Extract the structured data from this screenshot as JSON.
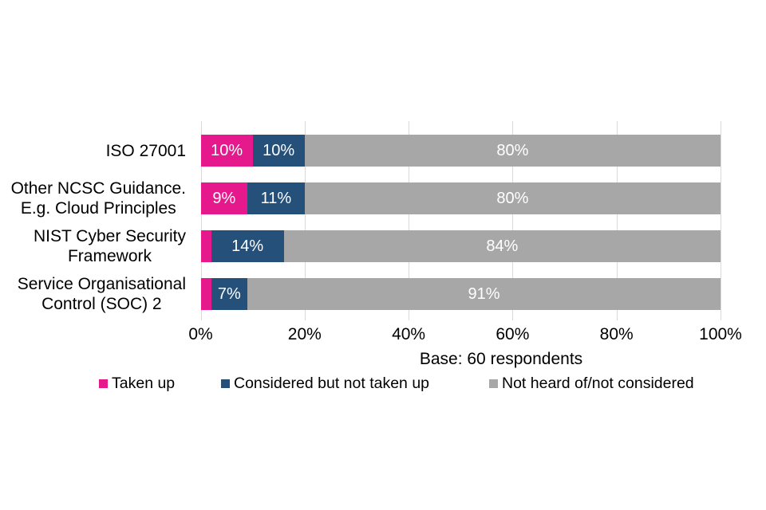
{
  "chart_data": {
    "type": "bar",
    "orientation": "horizontal",
    "stacked": true,
    "title": "",
    "xlabel": "",
    "ylabel": "",
    "axis_note": "Base: 60 respondents",
    "grid": true,
    "legend_position": "bottom",
    "categories": [
      "ISO 27001",
      "Other NCSC Guidance. E.g. Cloud Principles",
      "NIST Cyber Security Framework",
      "Service Organisational Control (SOC) 2"
    ],
    "category_lines": [
      [
        "ISO 27001"
      ],
      [
        "Other NCSC Guidance.",
        "E.g. Cloud Principles"
      ],
      [
        "NIST Cyber Security",
        "Framework"
      ],
      [
        "Service Organisational",
        "Control (SOC) 2"
      ]
    ],
    "series": [
      {
        "name": "Taken up",
        "color": "#E6198C",
        "values": [
          10,
          9,
          2,
          2
        ],
        "labels": [
          "10%",
          "9%",
          "",
          ""
        ]
      },
      {
        "name": "Considered but not taken up",
        "color": "#24507A",
        "values": [
          10,
          11,
          14,
          7
        ],
        "labels": [
          "10%",
          "11%",
          "14%",
          "7%"
        ]
      },
      {
        "name": "Not heard of/not considered",
        "color": "#A7A7A7",
        "values": [
          80,
          80,
          84,
          91
        ],
        "labels": [
          "80%",
          "80%",
          "84%",
          "91%"
        ]
      }
    ],
    "x_axis": {
      "range": [
        0,
        100
      ],
      "tick_values": [
        0,
        20,
        40,
        60,
        80,
        100
      ],
      "tick_labels": [
        "0%",
        "20%",
        "40%",
        "60%",
        "80%",
        "100%"
      ]
    },
    "colors": {
      "gridline": "#D9D9D9",
      "bar_label_text": "#FFFFFF",
      "axis_text": "#000000"
    }
  }
}
